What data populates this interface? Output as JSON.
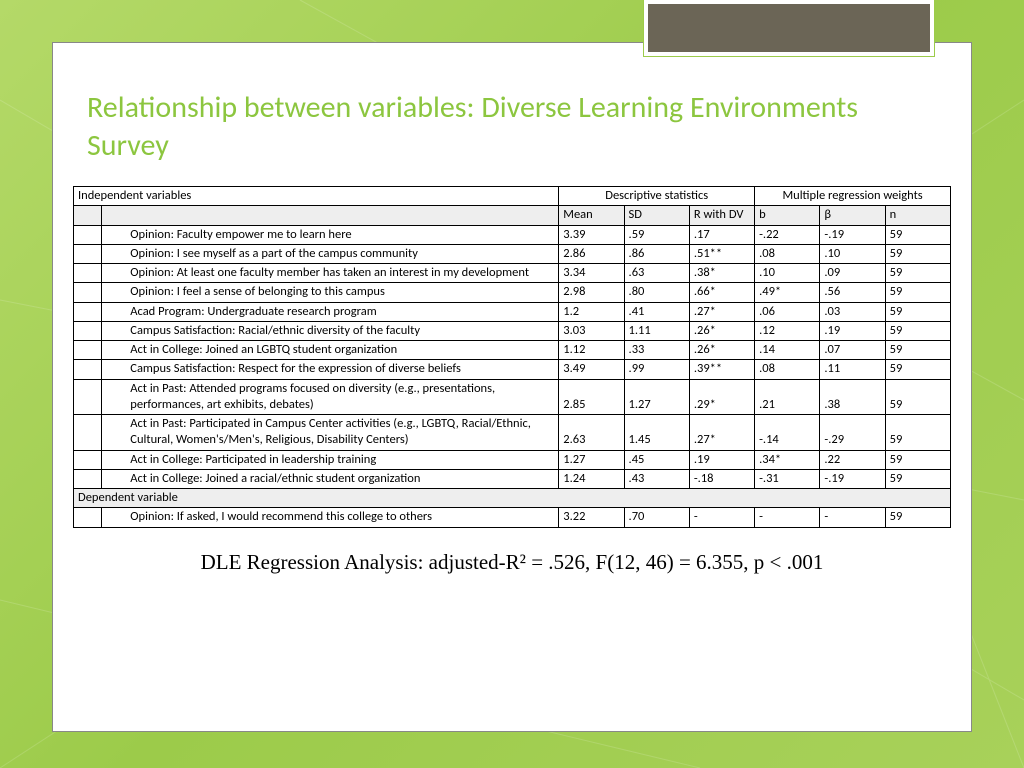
{
  "slide": {
    "title": "Relationship between variables: Diverse Learning Environments Survey",
    "footer": "DLE Regression Analysis: adjusted-R² = .526, F(12, 46) = 6.355, p < .001"
  },
  "table": {
    "header_group1": "Independent variables",
    "header_group2": "Descriptive statistics",
    "header_group3": "Multiple regression weights",
    "columns": [
      "Mean",
      "SD",
      "R with DV",
      "b",
      "β",
      "n"
    ],
    "rows": [
      {
        "label": "Opinion: Faculty empower me to learn here",
        "mean": "3.39",
        "sd": ".59",
        "r": ".17",
        "b": "-.22",
        "beta": "-.19",
        "n": "59"
      },
      {
        "label": "Opinion: I see myself as a part of the campus community",
        "mean": "2.86",
        "sd": ".86",
        "r": ".51**",
        "b": ".08",
        "beta": ".10",
        "n": "59"
      },
      {
        "label": "Opinion: At least one faculty member has taken an interest in my development",
        "mean": "3.34",
        "sd": ".63",
        "r": ".38*",
        "b": ".10",
        "beta": ".09",
        "n": "59"
      },
      {
        "label": "Opinion: I feel a sense of belonging to this campus",
        "mean": "2.98",
        "sd": ".80",
        "r": ".66*",
        "b": ".49*",
        "beta": ".56",
        "n": "59"
      },
      {
        "label": "Acad Program: Undergraduate research program",
        "mean": "1.2",
        "sd": ".41",
        "r": ".27*",
        "b": ".06",
        "beta": ".03",
        "n": "59"
      },
      {
        "label": "Campus Satisfaction: Racial/ethnic diversity of the faculty",
        "mean": "3.03",
        "sd": "1.11",
        "r": ".26*",
        "b": ".12",
        "beta": ".19",
        "n": "59"
      },
      {
        "label": "Act in College: Joined an LGBTQ student organization",
        "mean": "1.12",
        "sd": ".33",
        "r": ".26*",
        "b": ".14",
        "beta": ".07",
        "n": "59"
      },
      {
        "label": "Campus Satisfaction: Respect for the expression of diverse beliefs",
        "mean": "3.49",
        "sd": ".99",
        "r": ".39**",
        "b": ".08",
        "beta": ".11",
        "n": "59"
      },
      {
        "label": "Act in Past: Attended programs focused on diversity (e.g., presentations, performances, art exhibits, debates)",
        "mean": "2.85",
        "sd": "1.27",
        "r": ".29*",
        "b": ".21",
        "beta": ".38",
        "n": "59"
      },
      {
        "label": "Act in Past: Participated in Campus Center activities (e.g., LGBTQ, Racial/Ethnic, Cultural, Women's/Men's, Religious, Disability Centers)",
        "mean": "2.63",
        "sd": "1.45",
        "r": ".27*",
        "b": "-.14",
        "beta": "-.29",
        "n": "59"
      },
      {
        "label": "Act in College: Participated in leadership training",
        "mean": "1.27",
        "sd": ".45",
        "r": ".19",
        "b": ".34*",
        "beta": ".22",
        "n": "59"
      },
      {
        "label": "Act in College: Joined a racial/ethnic student organization",
        "mean": "1.24",
        "sd": ".43",
        "r": "-.18",
        "b": "-.31",
        "beta": "-.19",
        "n": "59"
      }
    ],
    "dep_header": "Dependent variable",
    "dep_row": {
      "label": "Opinion: If asked, I would recommend this college to others",
      "mean": "3.22",
      "sd": ".70",
      "r": "-",
      "b": "-",
      "beta": "-",
      "n": "59"
    }
  },
  "styling": {
    "bg_gradient_from": "#b4d968",
    "bg_gradient_to": "#9ccb4a",
    "title_color": "#8cc63f",
    "topbox_fill": "#6b6556",
    "header_fill": "#eeeeee",
    "border_color": "#000000",
    "font_table_size_pt": 12.5,
    "font_title_size_pt": 30,
    "font_footer_size_pt": 21
  }
}
